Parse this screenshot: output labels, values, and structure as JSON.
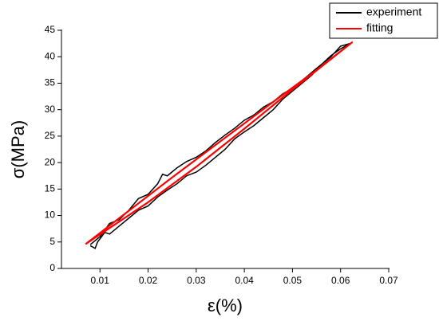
{
  "chart_data": {
    "type": "line",
    "x_label": "ε(%)",
    "y_label": "σ(MPa)",
    "xlim": [
      0.002,
      0.07
    ],
    "xticks": [
      0.01,
      0.02,
      0.03,
      0.04,
      0.05,
      0.06,
      0.07
    ],
    "ylim": [
      0,
      45
    ],
    "yticks": [
      0,
      5,
      10,
      15,
      20,
      25,
      30,
      35,
      40,
      45
    ],
    "legend": "top-right",
    "series": [
      {
        "name": "experiment",
        "color": "#000000",
        "x": [
          0.008,
          0.009,
          0.0095,
          0.011,
          0.012,
          0.014,
          0.016,
          0.018,
          0.02,
          0.022,
          0.024,
          0.026,
          0.028,
          0.03,
          0.032,
          0.034,
          0.036,
          0.038,
          0.04,
          0.042,
          0.044,
          0.046,
          0.048,
          0.05,
          0.052,
          0.054,
          0.056,
          0.058,
          0.06,
          0.062,
          0.06,
          0.058,
          0.055,
          0.052,
          0.05,
          0.048,
          0.046,
          0.044,
          0.042,
          0.04,
          0.038,
          0.036,
          0.034,
          0.032,
          0.03,
          0.028,
          0.026,
          0.024,
          0.023,
          0.022,
          0.02,
          0.018,
          0.016,
          0.014,
          0.012,
          0.01,
          0.008
        ],
        "values": [
          4.3,
          3.8,
          5.0,
          6.8,
          6.5,
          8.0,
          9.5,
          11.0,
          11.8,
          13.5,
          14.8,
          16.0,
          17.5,
          18.2,
          19.5,
          21.0,
          22.5,
          24.5,
          25.8,
          27.0,
          28.5,
          30.0,
          32.0,
          33.5,
          35.0,
          36.5,
          38.5,
          40.2,
          41.5,
          42.5,
          42.0,
          40.0,
          37.8,
          35.5,
          34.0,
          33.0,
          31.5,
          30.5,
          29.0,
          28.0,
          26.5,
          25.2,
          23.8,
          22.2,
          21.0,
          20.2,
          19.0,
          17.5,
          17.8,
          16.0,
          14.0,
          13.2,
          11.0,
          9.2,
          8.5,
          6.0,
          4.5
        ]
      },
      {
        "name": "fitting",
        "color": "#ff0000",
        "x": [
          0.007,
          0.02,
          0.03,
          0.04,
          0.05,
          0.0625,
          0.055,
          0.045,
          0.035,
          0.025,
          0.015,
          0.007
        ],
        "values": [
          4.6,
          12.5,
          19.2,
          26.4,
          33.8,
          42.8,
          37.5,
          30.8,
          24.0,
          17.2,
          10.2,
          4.6
        ]
      }
    ]
  }
}
